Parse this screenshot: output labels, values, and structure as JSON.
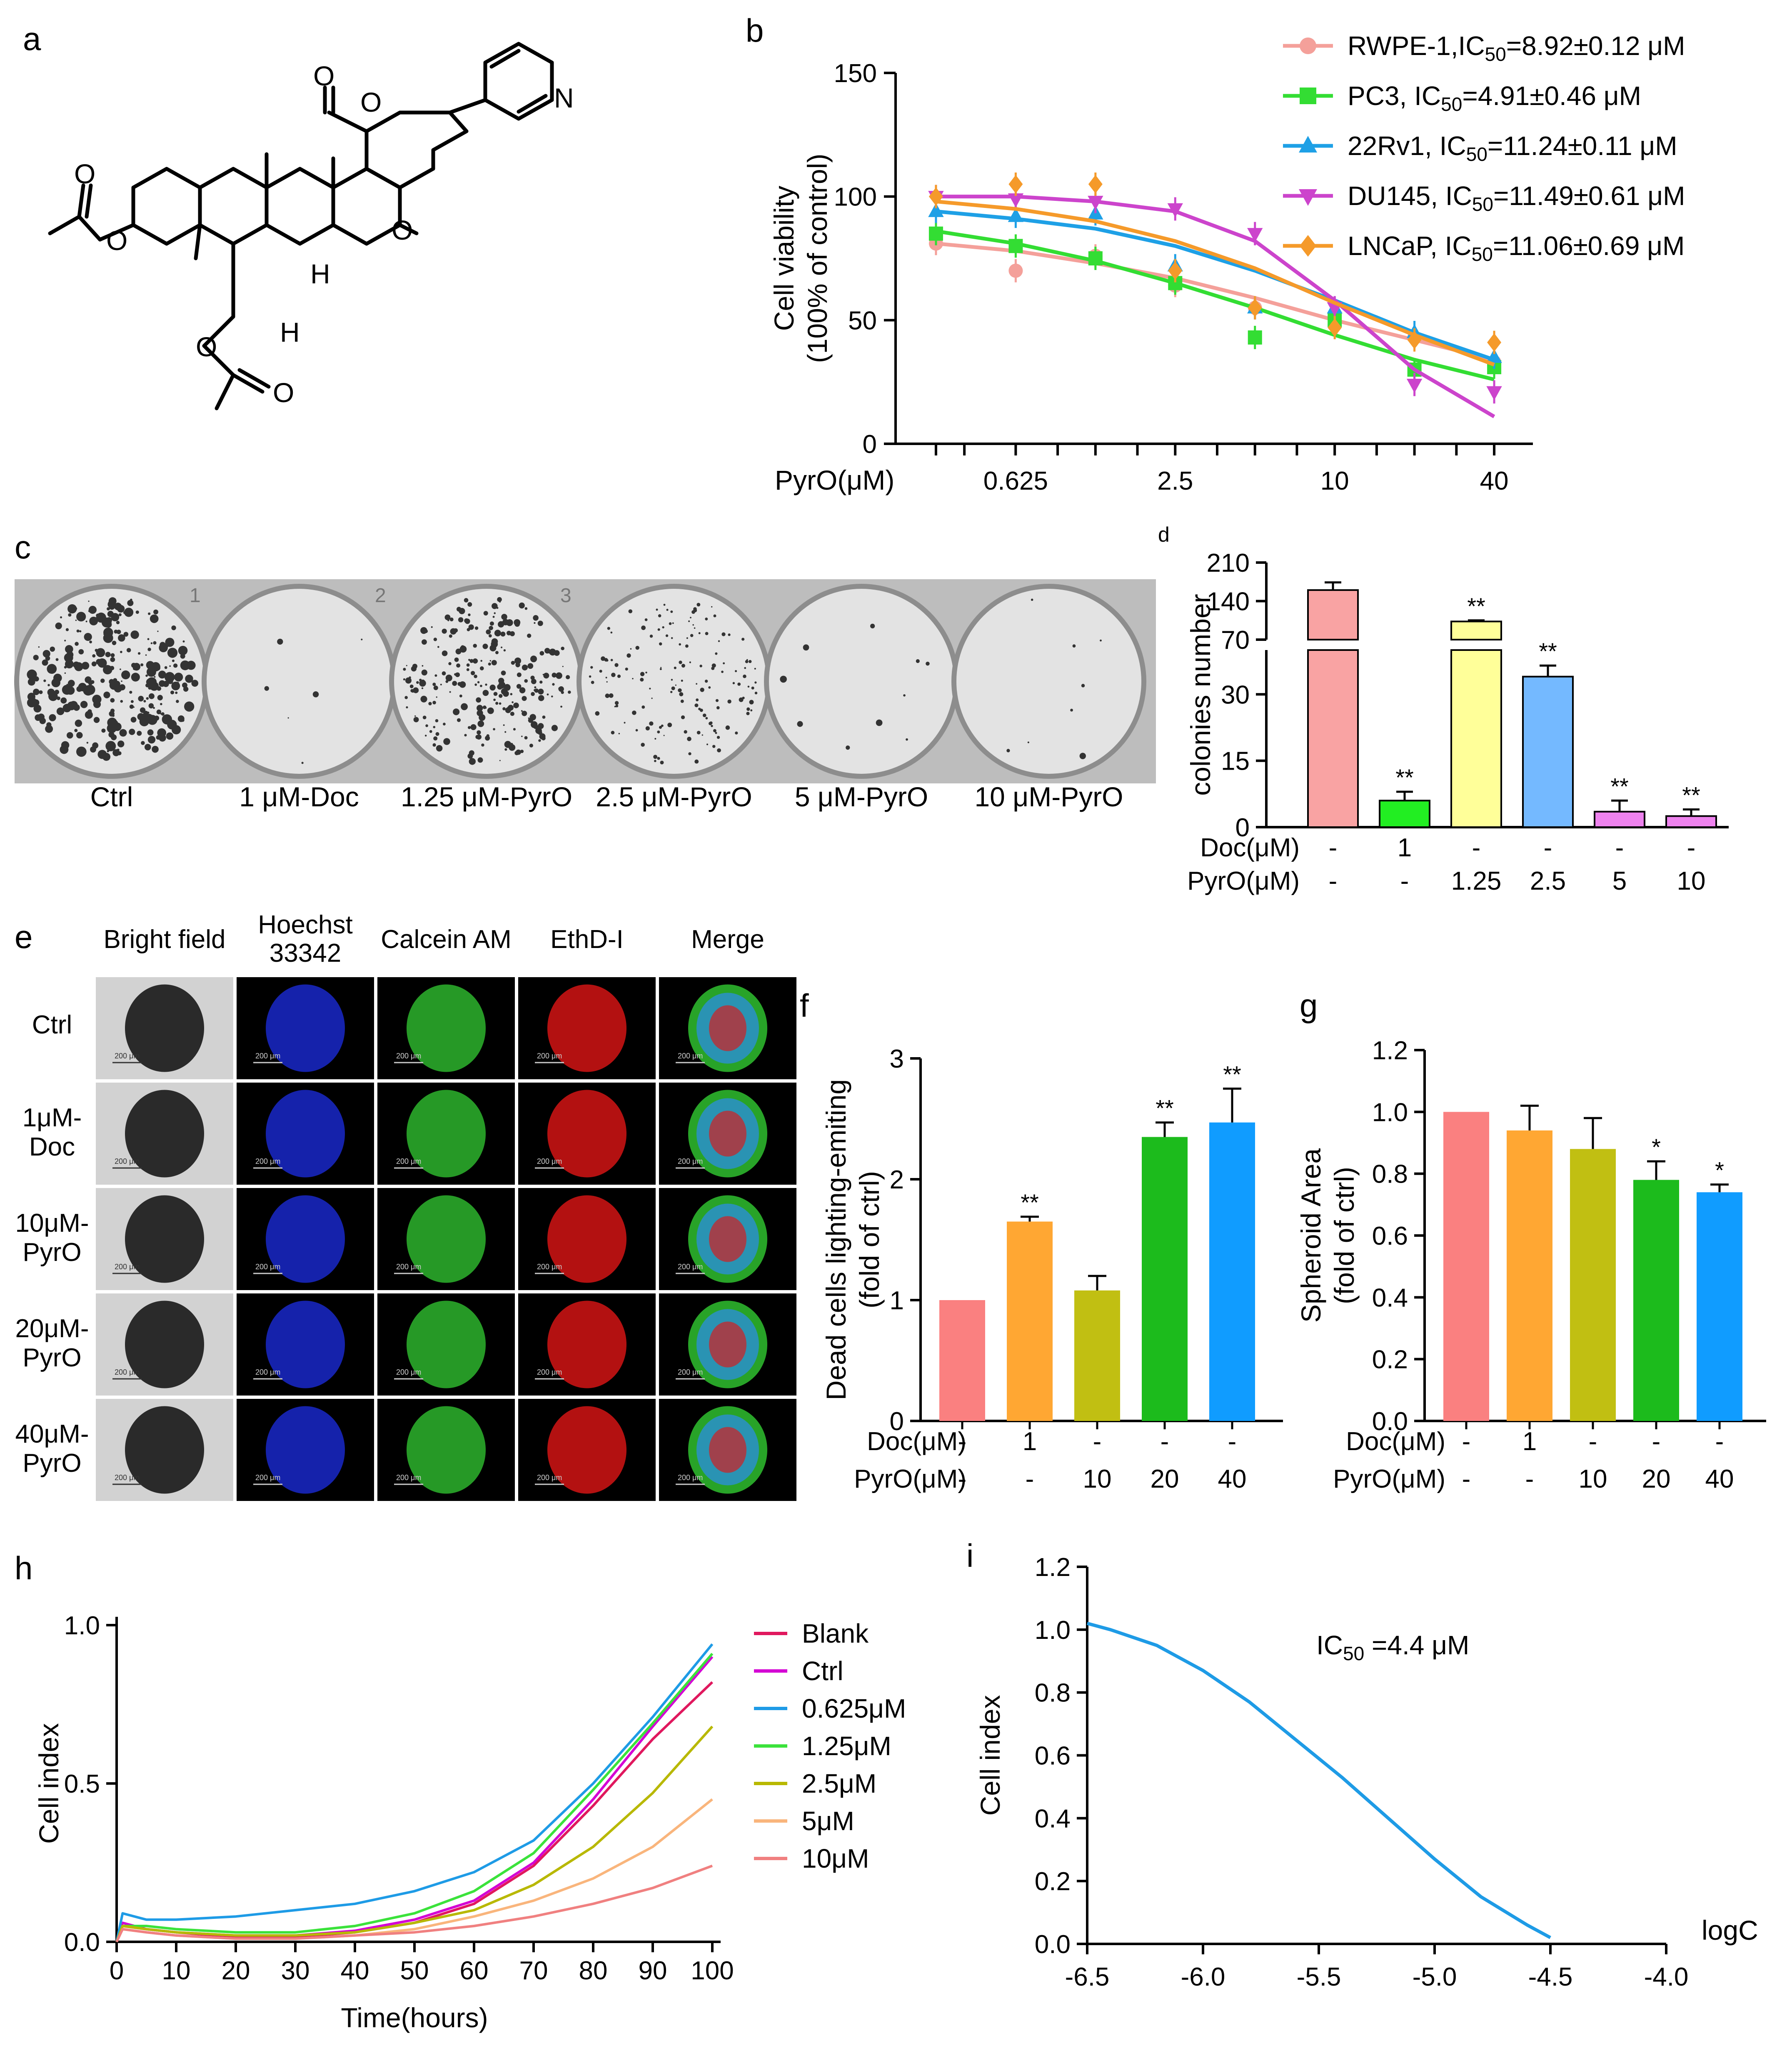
{
  "panels": {
    "a": "a",
    "b": "b",
    "c": "c",
    "d": "d",
    "e": "e",
    "f": "f",
    "g": "g",
    "h": "h",
    "i": "i"
  },
  "panel_c": {
    "well_labels": [
      "Ctrl",
      "1 μM-Doc",
      "1.25 μM-PyrO",
      "2.5 μM-PyrO",
      "5 μM-PyrO",
      "10 μM-PyrO"
    ],
    "plate_numbers": [
      "1",
      "2",
      "3"
    ]
  },
  "panel_e": {
    "column_headers": [
      "Bright field",
      "Hoechst\n33342",
      "Calcein AM",
      "EthD-I",
      "Merge"
    ],
    "row_labels": [
      "Ctrl",
      "1μM-\nDoc",
      "10μM-\nPyrO",
      "20μM-\nPyrO",
      "40μM-\nPyrO"
    ],
    "scale_bar": "200 μm",
    "colors": {
      "bright": "#2a2a2a",
      "hoechst": "#1a2bd6",
      "calcein": "#2fbf2f",
      "ethd": "#e01515"
    }
  },
  "chart_data": [
    {
      "panel": "b",
      "type": "scatter",
      "ylabel": "Cell viability\n(100% of control)",
      "xlabel": "PyrO(μM)",
      "xscale": "log2",
      "xticks": [
        0.625,
        2.5,
        10,
        40
      ],
      "xticklabels": [
        "0.625",
        "2.5",
        "10",
        "40"
      ],
      "ylim": [
        0,
        150
      ],
      "yticks": [
        0,
        50,
        100,
        150
      ],
      "legend": "top-right",
      "x": [
        0.3125,
        0.625,
        1.25,
        2.5,
        5,
        10,
        20,
        40
      ],
      "series": [
        {
          "name": "RWPE-1,IC50=8.92±0.12 μM",
          "color": "#f4a09a",
          "marker": "circle",
          "values": [
            81,
            70,
            76,
            64,
            55,
            48,
            43,
            33
          ],
          "fit": [
            81,
            78,
            73,
            67,
            59,
            50,
            42,
            34
          ]
        },
        {
          "name": "PC3, IC50=4.91±0.46 μM",
          "color": "#33dd33",
          "marker": "square",
          "values": [
            85,
            80,
            75,
            65,
            43,
            50,
            30,
            31
          ],
          "fit": [
            86,
            81,
            74,
            65,
            55,
            44,
            34,
            26
          ]
        },
        {
          "name": "22Rv1, IC50=11.24±0.11 μM",
          "color": "#1ea0e6",
          "marker": "triangle-up",
          "values": [
            94,
            92,
            93,
            72,
            55,
            55,
            45,
            35
          ],
          "fit": [
            94,
            91,
            87,
            80,
            70,
            58,
            45,
            34
          ]
        },
        {
          "name": "DU145, IC50=11.49±0.61 μM",
          "color": "#cc44cc",
          "marker": "triangle-down",
          "values": [
            100,
            99,
            98,
            95,
            85,
            55,
            24,
            21
          ],
          "fit": [
            100,
            100,
            98,
            94,
            82,
            58,
            30,
            11
          ]
        },
        {
          "name": "LNCaP, IC50=11.06±0.69 μM",
          "color": "#f59a2a",
          "marker": "diamond",
          "values": [
            100,
            105,
            105,
            70,
            55,
            47,
            42,
            41
          ],
          "fit": [
            98,
            95,
            90,
            82,
            71,
            57,
            44,
            32
          ]
        }
      ]
    },
    {
      "panel": "d",
      "type": "bar",
      "ylabel": "colonies number",
      "yticks_lower": [
        0,
        15,
        30
      ],
      "yticks_upper": [
        70,
        140,
        210
      ],
      "axis_break": [
        40,
        70
      ],
      "row_labels": [
        "Doc(μM)",
        "PyrO(μM)"
      ],
      "doc_row": [
        "-",
        "1",
        "-",
        "-",
        "-",
        "-"
      ],
      "pyro_row": [
        "-",
        "-",
        "1.25",
        "2.5",
        "5",
        "10"
      ],
      "values": [
        160,
        6,
        103,
        34,
        3.5,
        2.5
      ],
      "errors": [
        14,
        2,
        2,
        2.5,
        2.5,
        1.5
      ],
      "sig": [
        "",
        "**",
        "**",
        "**",
        "**",
        "**"
      ],
      "colors": [
        "#f9a3a3",
        "#22ee22",
        "#ffff99",
        "#74b9ff",
        "#ee82ee",
        "#ee82ee"
      ]
    },
    {
      "panel": "f",
      "type": "bar",
      "ylabel": "Dead cells lighting-emiting\n(fold of ctrl)",
      "ylim": [
        0,
        3
      ],
      "yticks": [
        0,
        1,
        2,
        3
      ],
      "row_labels": [
        "Doc(μM)",
        "PyrO(μM)"
      ],
      "doc_row": [
        "-",
        "1",
        "-",
        "-",
        "-"
      ],
      "pyro_row": [
        "-",
        "-",
        "10",
        "20",
        "40"
      ],
      "values": [
        1.0,
        1.65,
        1.08,
        2.35,
        2.47
      ],
      "errors": [
        0,
        0.04,
        0.12,
        0.12,
        0.28
      ],
      "sig": [
        "",
        "**",
        "",
        "**",
        "**"
      ],
      "colors": [
        "#fa8080",
        "#ffa733",
        "#c1bf12",
        "#1cbb1c",
        "#109cff"
      ]
    },
    {
      "panel": "g",
      "type": "bar",
      "ylabel": "Spheroid Area\n(fold of ctrl)",
      "ylim": [
        0,
        1.2
      ],
      "yticks": [
        0.0,
        0.2,
        0.4,
        0.6,
        0.8,
        1.0,
        1.2
      ],
      "row_labels": [
        "Doc(μM)",
        "PyrO(μM)"
      ],
      "doc_row": [
        "-",
        "1",
        "-",
        "-",
        "-"
      ],
      "pyro_row": [
        "-",
        "-",
        "10",
        "20",
        "40"
      ],
      "values": [
        1.0,
        0.94,
        0.88,
        0.78,
        0.74
      ],
      "errors": [
        0,
        0.08,
        0.1,
        0.06,
        0.025
      ],
      "sig": [
        "",
        "",
        "",
        "*",
        "*"
      ],
      "colors": [
        "#fa8080",
        "#ffa733",
        "#c1bf12",
        "#1cbb1c",
        "#109cff"
      ]
    },
    {
      "panel": "h",
      "type": "line",
      "xlabel": "Time(hours)",
      "ylabel": "Cell index",
      "xlim": [
        0,
        100
      ],
      "ylim": [
        0,
        1.0
      ],
      "xticks": [
        0,
        10,
        20,
        30,
        40,
        50,
        60,
        70,
        80,
        90,
        100
      ],
      "yticks": [
        0.0,
        0.5,
        1.0
      ],
      "ytickformat": 1,
      "legend": "top-right",
      "series": [
        {
          "name": "Blank",
          "color": "#e0185e",
          "x": [
            0,
            1,
            5,
            10,
            20,
            30,
            40,
            50,
            60,
            70,
            80,
            90,
            100
          ],
          "values": [
            0,
            0.05,
            0.04,
            0.03,
            0.015,
            0.015,
            0.03,
            0.06,
            0.12,
            0.24,
            0.43,
            0.64,
            0.82
          ]
        },
        {
          "name": "Ctrl",
          "color": "#d400d4",
          "x": [
            0,
            1,
            5,
            10,
            20,
            30,
            40,
            50,
            60,
            70,
            80,
            90,
            100
          ],
          "values": [
            0,
            0.06,
            0.04,
            0.03,
            0.02,
            0.02,
            0.035,
            0.07,
            0.13,
            0.25,
            0.45,
            0.68,
            0.9
          ]
        },
        {
          "name": "0.625μM",
          "color": "#1e9be6",
          "x": [
            0,
            1,
            5,
            10,
            20,
            30,
            40,
            50,
            60,
            70,
            80,
            90,
            100
          ],
          "values": [
            0,
            0.09,
            0.07,
            0.07,
            0.08,
            0.1,
            0.12,
            0.16,
            0.22,
            0.32,
            0.5,
            0.71,
            0.94
          ]
        },
        {
          "name": "1.25μM",
          "color": "#3be23b",
          "x": [
            0,
            1,
            5,
            10,
            20,
            30,
            40,
            50,
            60,
            70,
            80,
            90,
            100
          ],
          "values": [
            0,
            0.05,
            0.05,
            0.04,
            0.03,
            0.03,
            0.05,
            0.09,
            0.16,
            0.28,
            0.48,
            0.69,
            0.91
          ]
        },
        {
          "name": "2.5μM",
          "color": "#b8b800",
          "x": [
            0,
            1,
            5,
            10,
            20,
            30,
            40,
            50,
            60,
            70,
            80,
            90,
            100
          ],
          "values": [
            0,
            0.05,
            0.04,
            0.03,
            0.02,
            0.02,
            0.03,
            0.06,
            0.1,
            0.18,
            0.3,
            0.47,
            0.68
          ]
        },
        {
          "name": "5μM",
          "color": "#f9b57c",
          "x": [
            0,
            1,
            5,
            10,
            20,
            30,
            40,
            50,
            60,
            70,
            80,
            90,
            100
          ],
          "values": [
            0,
            0.04,
            0.03,
            0.02,
            0.01,
            0.01,
            0.02,
            0.04,
            0.08,
            0.13,
            0.2,
            0.3,
            0.45
          ]
        },
        {
          "name": "10μM",
          "color": "#f08080",
          "x": [
            0,
            1,
            5,
            10,
            20,
            30,
            40,
            50,
            60,
            70,
            80,
            90,
            100
          ],
          "values": [
            0,
            0.04,
            0.03,
            0.02,
            0.01,
            0.01,
            0.02,
            0.03,
            0.05,
            0.08,
            0.12,
            0.17,
            0.24
          ]
        }
      ]
    },
    {
      "panel": "i",
      "type": "line",
      "xlabel": "logC",
      "ylabel": "Cell index",
      "xlim": [
        -6.5,
        -4.0
      ],
      "ylim": [
        0.0,
        1.2
      ],
      "xticks": [
        -6.5,
        -6.0,
        -5.5,
        -5.0,
        -4.5,
        -4.0
      ],
      "yticks": [
        0.0,
        0.2,
        0.4,
        0.6,
        0.8,
        1.0,
        1.2
      ],
      "annotation": "IC50 =4.4 μM",
      "series": [
        {
          "color": "#1e9be6",
          "x": [
            -6.5,
            -6.4,
            -6.2,
            -6.0,
            -5.8,
            -5.6,
            -5.4,
            -5.2,
            -5.0,
            -4.8,
            -4.6,
            -4.5
          ],
          "values": [
            1.02,
            1.0,
            0.95,
            0.87,
            0.77,
            0.65,
            0.53,
            0.4,
            0.27,
            0.15,
            0.06,
            0.02
          ]
        }
      ]
    }
  ]
}
